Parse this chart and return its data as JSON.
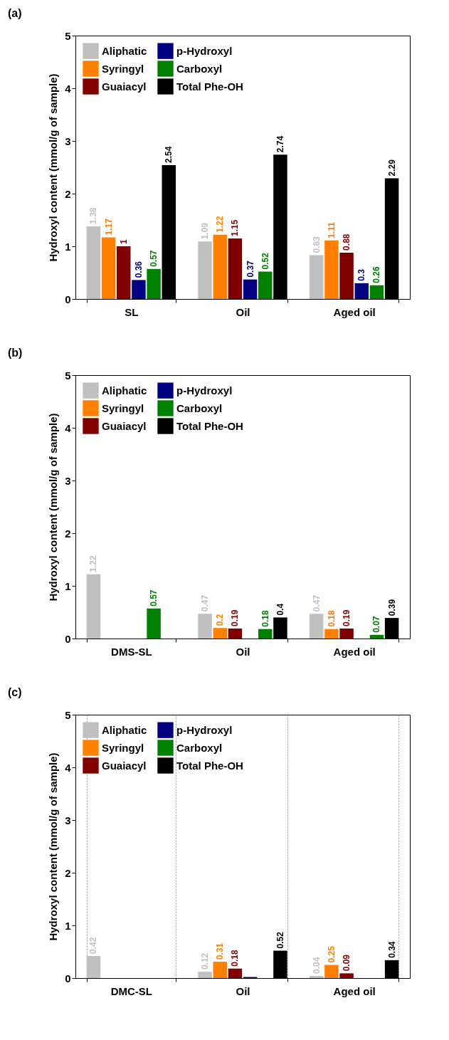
{
  "chart_data": [
    {
      "type": "bar",
      "title": "(a)",
      "ylabel": "Hydroxyl content (mmol/g of sample)",
      "categories": [
        "SL",
        "Oil",
        "Aged oil"
      ],
      "ylim": [
        0,
        5
      ],
      "yticks": [
        0,
        1,
        2,
        3,
        4,
        5
      ],
      "legend": "top left",
      "grid": false,
      "series": [
        {
          "name": "Aliphatic",
          "color": "#c0c0c0",
          "values": [
            1.38,
            1.09,
            0.83
          ],
          "value_labels": [
            "1.38",
            "1.09",
            "0.83"
          ]
        },
        {
          "name": "Syringyl",
          "color": "#ff8000",
          "values": [
            1.17,
            1.22,
            1.11
          ],
          "value_labels": [
            "1.17",
            "1.22",
            "1.11"
          ]
        },
        {
          "name": "Guaiacyl",
          "color": "#800000",
          "values": [
            1,
            1.15,
            0.88
          ],
          "value_labels": [
            "1",
            "1.15",
            "0.88"
          ]
        },
        {
          "name": "p-Hydroxyl",
          "color": "#000080",
          "values": [
            0.36,
            0.37,
            0.3
          ],
          "value_labels": [
            "0.36",
            "0.37",
            "0.3"
          ]
        },
        {
          "name": "Carboxyl",
          "color": "#008000",
          "values": [
            0.57,
            0.52,
            0.26
          ],
          "value_labels": [
            "0.57",
            "0.52",
            "0.26"
          ]
        },
        {
          "name": "Total Phe-OH",
          "color": "#000000",
          "values": [
            2.54,
            2.74,
            2.29
          ],
          "value_labels": [
            "2.54",
            "2.74",
            "2.29"
          ]
        }
      ]
    },
    {
      "type": "bar",
      "title": "(b)",
      "ylabel": "Hydroxyl content (mmol/g of sample)",
      "categories": [
        "DMS-SL",
        "Oil",
        "Aged oil"
      ],
      "ylim": [
        0,
        5
      ],
      "yticks": [
        0,
        1,
        2,
        3,
        4,
        5
      ],
      "legend": "top left",
      "grid": false,
      "series": [
        {
          "name": "Aliphatic",
          "color": "#c0c0c0",
          "values": [
            1.22,
            0.47,
            0.47
          ],
          "value_labels": [
            "1.22",
            "0.47",
            "0.47"
          ]
        },
        {
          "name": "Syringyl",
          "color": "#ff8000",
          "values": [
            null,
            0.2,
            0.18
          ],
          "value_labels": [
            null,
            "0.2",
            "0.18"
          ]
        },
        {
          "name": "Guaiacyl",
          "color": "#800000",
          "values": [
            null,
            0.19,
            0.19
          ],
          "value_labels": [
            null,
            "0.19",
            "0.19"
          ]
        },
        {
          "name": "p-Hydroxyl",
          "color": "#000080",
          "values": [
            null,
            null,
            null
          ],
          "value_labels": [
            null,
            null,
            null
          ]
        },
        {
          "name": "Carboxyl",
          "color": "#008000",
          "values": [
            0.57,
            0.18,
            0.07
          ],
          "value_labels": [
            "0.57",
            "0.18",
            "0.07"
          ]
        },
        {
          "name": "Total Phe-OH",
          "color": "#000000",
          "values": [
            null,
            0.4,
            0.39
          ],
          "value_labels": [
            null,
            "0.4",
            "0.39"
          ]
        }
      ]
    },
    {
      "type": "bar",
      "title": "(c)",
      "ylabel": "Hydroxyl content (mmol/g of sample)",
      "categories": [
        "DMC-SL",
        "Oil",
        "Aged oil"
      ],
      "ylim": [
        0,
        5
      ],
      "yticks": [
        0,
        1,
        2,
        3,
        4,
        5
      ],
      "legend": "top left",
      "grid": "x",
      "series": [
        {
          "name": "Aliphatic",
          "color": "#c0c0c0",
          "values": [
            0.42,
            0.12,
            0.04
          ],
          "value_labels": [
            "0.42",
            "0.12",
            "0.04"
          ]
        },
        {
          "name": "Syringyl",
          "color": "#ff8000",
          "values": [
            null,
            0.31,
            0.25
          ],
          "value_labels": [
            null,
            "0.31",
            "0.25"
          ]
        },
        {
          "name": "Guaiacyl",
          "color": "#800000",
          "values": [
            null,
            0.18,
            0.09
          ],
          "value_labels": [
            null,
            "0.18",
            "0.09"
          ]
        },
        {
          "name": "p-Hydroxyl",
          "color": "#000080",
          "values": [
            null,
            0.02,
            null
          ],
          "value_labels": [
            null,
            null,
            null
          ]
        },
        {
          "name": "Carboxyl",
          "color": "#008000",
          "values": [
            null,
            null,
            null
          ],
          "value_labels": [
            null,
            null,
            null
          ]
        },
        {
          "name": "Total Phe-OH",
          "color": "#000000",
          "values": [
            null,
            0.52,
            0.34
          ],
          "value_labels": [
            null,
            "0.52",
            "0.34"
          ]
        }
      ]
    }
  ]
}
